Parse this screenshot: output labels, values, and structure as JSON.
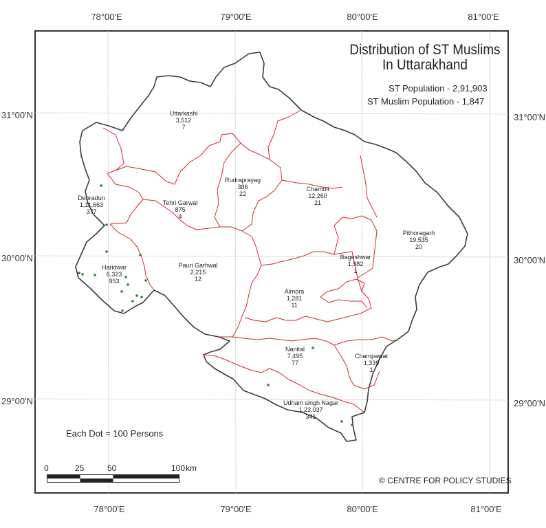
{
  "title": {
    "line1": "Distribution of ST Muslims",
    "line2": "In Uttarakhand"
  },
  "stats": {
    "st_population": "ST Population - 2,91,903",
    "st_muslim_population": "ST Muslim Population - 1,847"
  },
  "graticule": {
    "top_labels": [
      "78°00'E",
      "79°00'E",
      "80°00'E",
      "81°00'E"
    ],
    "bottom_labels": [
      "78°00'E",
      "79°00'E",
      "80°00'E",
      "81°00'E"
    ],
    "left_labels": [
      "31°00'N",
      "30°00'N",
      "29°00'N"
    ],
    "right_labels": [
      "31°00'N",
      "30°00'N",
      "29°00'N"
    ]
  },
  "districts": [
    {
      "name": "Uttarkashi",
      "population": "3,512",
      "muslims": "7"
    },
    {
      "name": "Dehradun",
      "population": "1,11,663",
      "muslims": "377"
    },
    {
      "name": "Tehri Garwal",
      "population": "875",
      "muslims": "4"
    },
    {
      "name": "Rudraprayag",
      "population": "386",
      "muslims": "22"
    },
    {
      "name": "Chamoli",
      "population": "12,260",
      "muslims": "21"
    },
    {
      "name": "Pithoragarh",
      "population": "19,535",
      "muslims": "20"
    },
    {
      "name": "Bageshwar",
      "population": "1,982",
      "muslims": "1"
    },
    {
      "name": "Haridwar",
      "population": "6,323",
      "muslims": "953"
    },
    {
      "name": "Pauri Garhwal",
      "population": "2,215",
      "muslims": "12"
    },
    {
      "name": "Almora",
      "population": "1,281",
      "muslims": "11"
    },
    {
      "name": "Nanital",
      "population": "7,495",
      "muslims": "77"
    },
    {
      "name": "Champawat",
      "population": "1,339",
      "muslims": "1"
    },
    {
      "name": "Udham singh Nagar",
      "population": "1,23,037",
      "muslims": "341"
    }
  ],
  "legend": {
    "dot": "Each Dot = 100 Persons"
  },
  "scale": {
    "ticks": [
      "0",
      "25",
      "50",
      "100"
    ],
    "unit": "km"
  },
  "copyright": "© CENTRE FOR POLICY STUDIES",
  "colors": {
    "state_border": "#3a3a3a",
    "district_border": "#e0202a",
    "dot": "#2e7d32",
    "graticule": "#d6d6d6"
  }
}
